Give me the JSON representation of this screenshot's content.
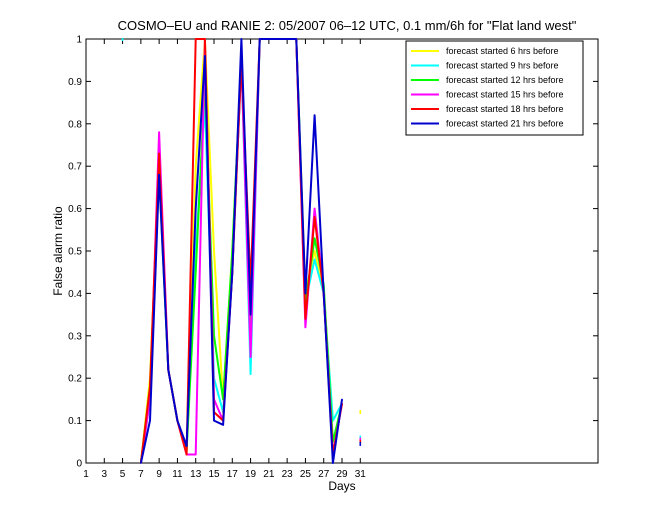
{
  "chart_data": {
    "type": "line",
    "title": "COSMO–EU and RANIE 2: 05/2007 06–12 UTC, 0.1 mm/6h for \"Flat land west\"",
    "xlabel": "Days",
    "ylabel": "False alarm ratio",
    "xlim": [
      1,
      57
    ],
    "ylim": [
      0,
      1
    ],
    "x_ticks": [
      1,
      3,
      5,
      7,
      9,
      11,
      13,
      15,
      17,
      19,
      21,
      23,
      25,
      27,
      29,
      31
    ],
    "y_ticks": [
      0,
      0.1,
      0.2,
      0.3,
      0.4,
      0.5,
      0.6,
      0.7,
      0.8,
      0.9,
      1
    ],
    "y_tick_labels": [
      "0",
      "0.1",
      "0.2",
      "0.3",
      "0.4",
      "0.5",
      "0.6",
      "0.7",
      "0.8",
      "0.9",
      "1"
    ],
    "legend_position": "top-right",
    "x": [
      7,
      8,
      9,
      10,
      11,
      12,
      13,
      14,
      15,
      16,
      17,
      18,
      19,
      20,
      21,
      22,
      23,
      24,
      25,
      26,
      27,
      28,
      29
    ],
    "series": [
      {
        "name": "forecast started 6 hrs before",
        "color": "#ffff00",
        "values": [
          0.0,
          0.2,
          0.7,
          0.22,
          0.1,
          0.03,
          0.7,
          1.0,
          0.5,
          0.15,
          0.5,
          0.95,
          0.25,
          1.0,
          1.0,
          1.0,
          1.0,
          1.0,
          0.4,
          0.5,
          0.4,
          0.1,
          0.14
        ],
        "isolated": [
          {
            "x": 31,
            "y": 0.12
          }
        ]
      },
      {
        "name": "forecast started 9 hrs before",
        "color": "#00ffff",
        "values": [
          0.0,
          0.15,
          0.7,
          0.22,
          0.1,
          0.03,
          0.5,
          0.85,
          0.2,
          0.12,
          0.45,
          0.95,
          0.21,
          1.0,
          1.0,
          1.0,
          1.0,
          1.0,
          0.38,
          0.48,
          0.4,
          0.1,
          0.14
        ],
        "isolated": [
          {
            "x": 5,
            "y": 1.0
          },
          {
            "x": 31,
            "y": 0.06
          }
        ]
      },
      {
        "name": "forecast started 12 hrs before",
        "color": "#00ff00",
        "values": [
          0.0,
          0.18,
          0.68,
          0.22,
          0.1,
          0.03,
          0.45,
          0.9,
          0.3,
          0.15,
          0.5,
          0.95,
          0.3,
          1.0,
          1.0,
          1.0,
          1.0,
          1.0,
          0.38,
          0.53,
          0.42,
          0.05,
          0.14
        ],
        "isolated": []
      },
      {
        "name": "forecast started 15 hrs before",
        "color": "#ff00ff",
        "values": [
          0.0,
          0.15,
          0.78,
          0.22,
          0.1,
          0.02,
          0.02,
          1.0,
          0.15,
          0.1,
          0.45,
          0.95,
          0.25,
          1.0,
          1.0,
          1.0,
          1.0,
          1.0,
          0.32,
          0.6,
          0.4,
          0.02,
          0.14
        ],
        "isolated": [
          {
            "x": 31,
            "y": 0.055
          }
        ]
      },
      {
        "name": "forecast started 18 hrs before",
        "color": "#ff0000",
        "values": [
          0.0,
          0.18,
          0.73,
          0.22,
          0.1,
          0.02,
          1.0,
          1.0,
          0.12,
          0.1,
          0.45,
          0.95,
          0.42,
          1.0,
          1.0,
          1.0,
          1.0,
          1.0,
          0.34,
          0.58,
          0.4,
          0.02,
          0.14
        ],
        "isolated": [
          {
            "x": 31,
            "y": 0.05
          }
        ]
      },
      {
        "name": "forecast started 21 hrs before",
        "color": "#0000cc",
        "values": [
          0.0,
          0.1,
          0.68,
          0.22,
          0.1,
          0.04,
          0.6,
          0.96,
          0.1,
          0.09,
          0.45,
          1.0,
          0.35,
          1.0,
          1.0,
          1.0,
          1.0,
          1.0,
          0.4,
          0.82,
          0.4,
          0.0,
          0.15
        ],
        "isolated": [
          {
            "x": 31,
            "y": 0.045
          }
        ]
      }
    ]
  }
}
